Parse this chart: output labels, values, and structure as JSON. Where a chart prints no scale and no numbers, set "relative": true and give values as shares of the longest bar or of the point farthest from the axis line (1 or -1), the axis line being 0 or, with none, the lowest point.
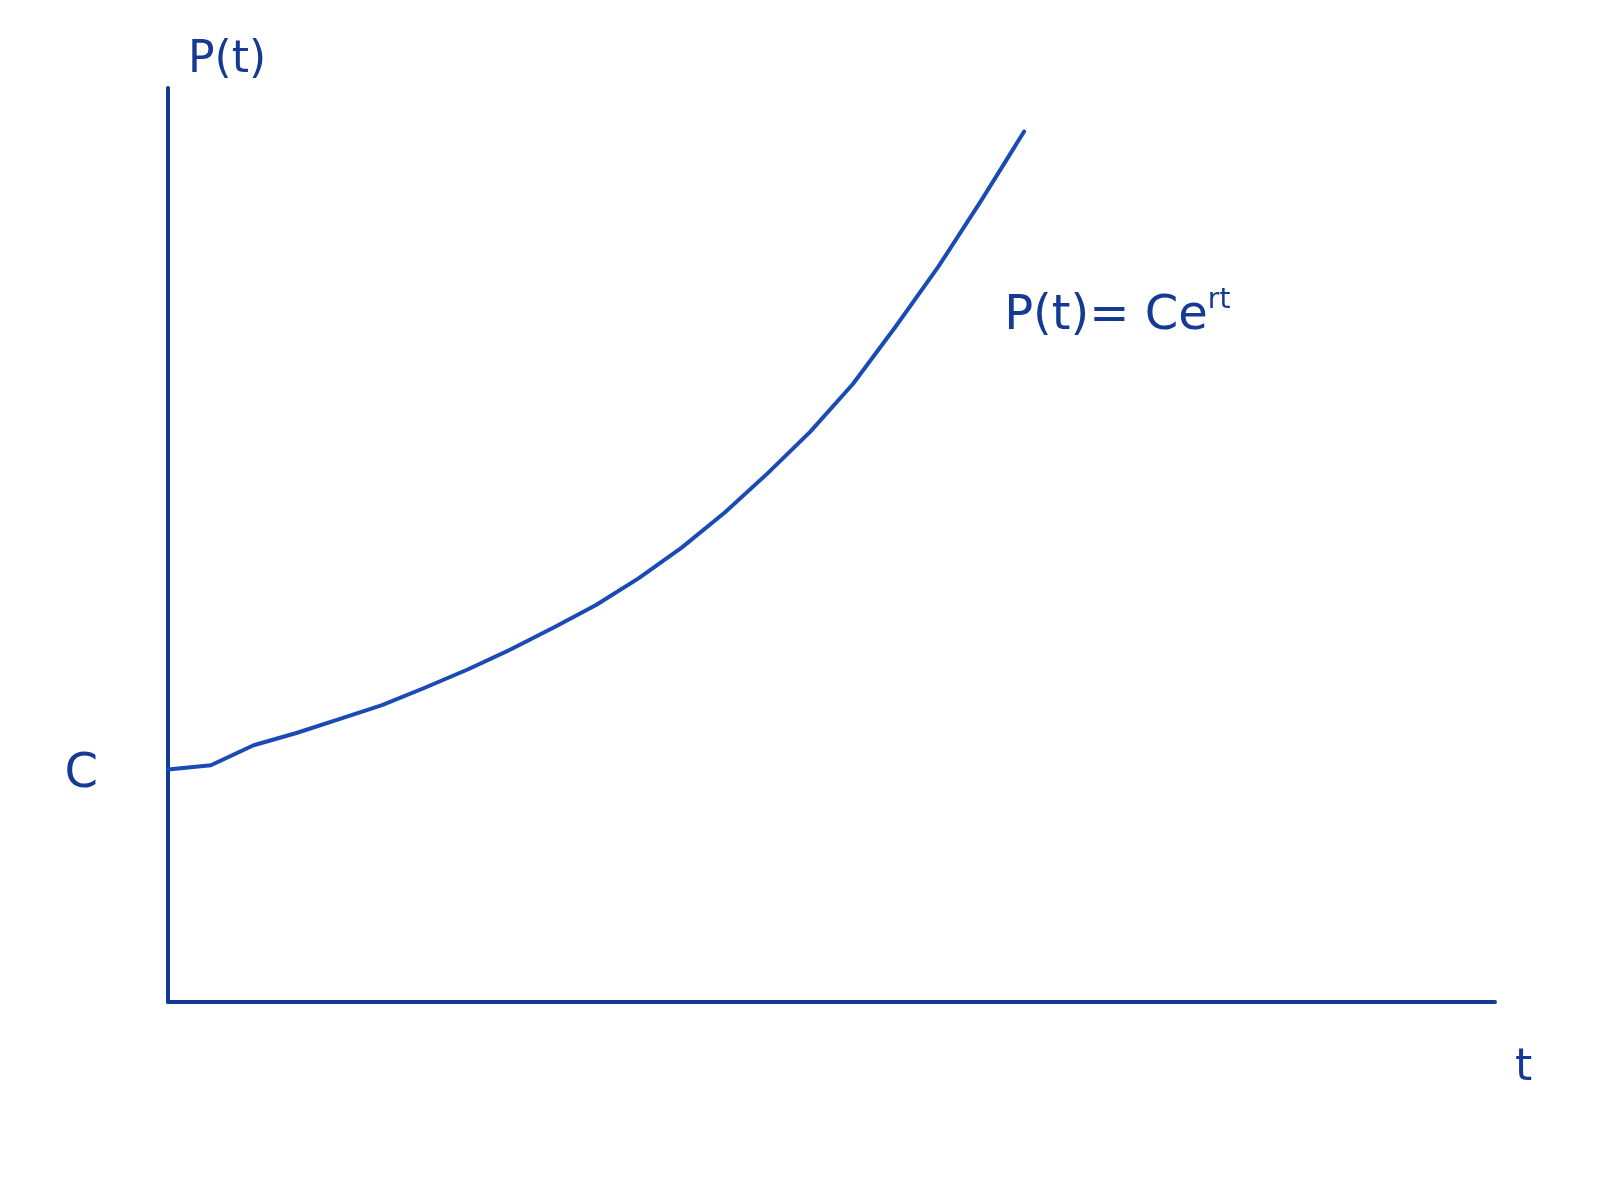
{
  "chart_data": {
    "type": "line",
    "relative": true,
    "xlabel": "t",
    "ylabel": "P(t)",
    "categories": [
      null,
      null,
      null,
      null,
      null,
      null,
      null,
      null,
      null,
      null,
      null,
      null,
      null,
      null,
      null,
      null,
      null,
      null,
      null,
      null,
      null,
      null,
      null,
      null,
      null,
      null,
      null,
      null,
      null,
      null,
      null,
      null
    ],
    "series": [
      {
        "color": "#1a4bb5",
        "values": [
          0.267,
          0.272,
          0.295,
          0.309,
          0.325,
          0.341,
          0.361,
          0.382,
          0.405,
          0.43,
          0.456,
          0.487,
          0.522,
          0.562,
          0.607,
          0.655,
          0.71,
          0.776,
          0.845,
          0.921,
          1,
          null,
          null,
          null,
          null,
          null,
          null,
          null,
          null,
          null,
          null,
          null
        ]
      }
    ],
    "annotations": [
      "C",
      "P(t)= Ce$^{rt}$"
    ]
  }
}
